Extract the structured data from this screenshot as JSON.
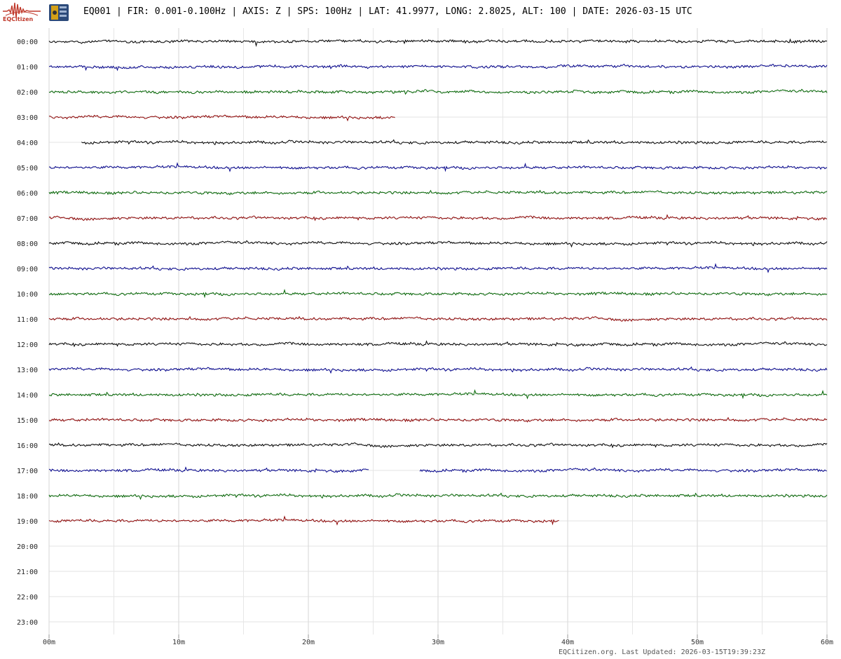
{
  "header": {
    "logo_text": "EQCitizen",
    "title": "EQ001 | FIR: 0.001-0.100Hz | AXIS: Z | SPS: 100Hz | LAT: 41.9977, LONG: 2.8025, ALT: 100 | DATE: 2026-03-15 UTC"
  },
  "footer": {
    "text": "EQCitizen.org. Last Updated: 2026-03-15T19:39:23Z"
  },
  "chart_data": {
    "type": "line",
    "title": "",
    "xlabel": "",
    "ylabel": "",
    "x_range_minutes": [
      0,
      60
    ],
    "x_tick_labels": [
      "00m",
      "10m",
      "20m",
      "30m",
      "40m",
      "50m",
      "60m"
    ],
    "x_minor_step_minutes": 5,
    "row_labels": [
      "00:00",
      "01:00",
      "02:00",
      "03:00",
      "04:00",
      "05:00",
      "06:00",
      "07:00",
      "08:00",
      "09:00",
      "10:00",
      "11:00",
      "12:00",
      "13:00",
      "14:00",
      "15:00",
      "16:00",
      "17:00",
      "18:00",
      "19:00",
      "20:00",
      "21:00",
      "22:00",
      "23:00"
    ],
    "trace_colors": [
      "#000000",
      "#00008b",
      "#006400",
      "#8b0000"
    ],
    "grid": true,
    "rows": [
      {
        "hour": "00:00",
        "segments": [
          [
            0,
            60
          ]
        ]
      },
      {
        "hour": "01:00",
        "segments": [
          [
            0,
            60
          ]
        ]
      },
      {
        "hour": "02:00",
        "segments": [
          [
            0,
            60
          ]
        ]
      },
      {
        "hour": "03:00",
        "segments": [
          [
            0,
            26.7
          ]
        ]
      },
      {
        "hour": "04:00",
        "segments": [
          [
            2.5,
            60
          ]
        ]
      },
      {
        "hour": "05:00",
        "segments": [
          [
            0,
            60
          ]
        ]
      },
      {
        "hour": "06:00",
        "segments": [
          [
            0,
            60
          ]
        ]
      },
      {
        "hour": "07:00",
        "segments": [
          [
            0,
            60
          ]
        ]
      },
      {
        "hour": "08:00",
        "segments": [
          [
            0,
            60
          ]
        ]
      },
      {
        "hour": "09:00",
        "segments": [
          [
            0,
            60
          ]
        ]
      },
      {
        "hour": "10:00",
        "segments": [
          [
            0,
            60
          ]
        ]
      },
      {
        "hour": "11:00",
        "segments": [
          [
            0,
            60
          ]
        ]
      },
      {
        "hour": "12:00",
        "segments": [
          [
            0,
            60
          ]
        ]
      },
      {
        "hour": "13:00",
        "segments": [
          [
            0,
            60
          ]
        ]
      },
      {
        "hour": "14:00",
        "segments": [
          [
            0,
            60
          ]
        ]
      },
      {
        "hour": "15:00",
        "segments": [
          [
            0,
            60
          ]
        ]
      },
      {
        "hour": "16:00",
        "segments": [
          [
            0,
            60
          ]
        ]
      },
      {
        "hour": "17:00",
        "segments": [
          [
            0,
            24.7
          ],
          [
            28.6,
            60
          ]
        ]
      },
      {
        "hour": "18:00",
        "segments": [
          [
            0,
            60
          ]
        ]
      },
      {
        "hour": "19:00",
        "segments": [
          [
            0,
            39.4
          ]
        ]
      }
    ]
  }
}
